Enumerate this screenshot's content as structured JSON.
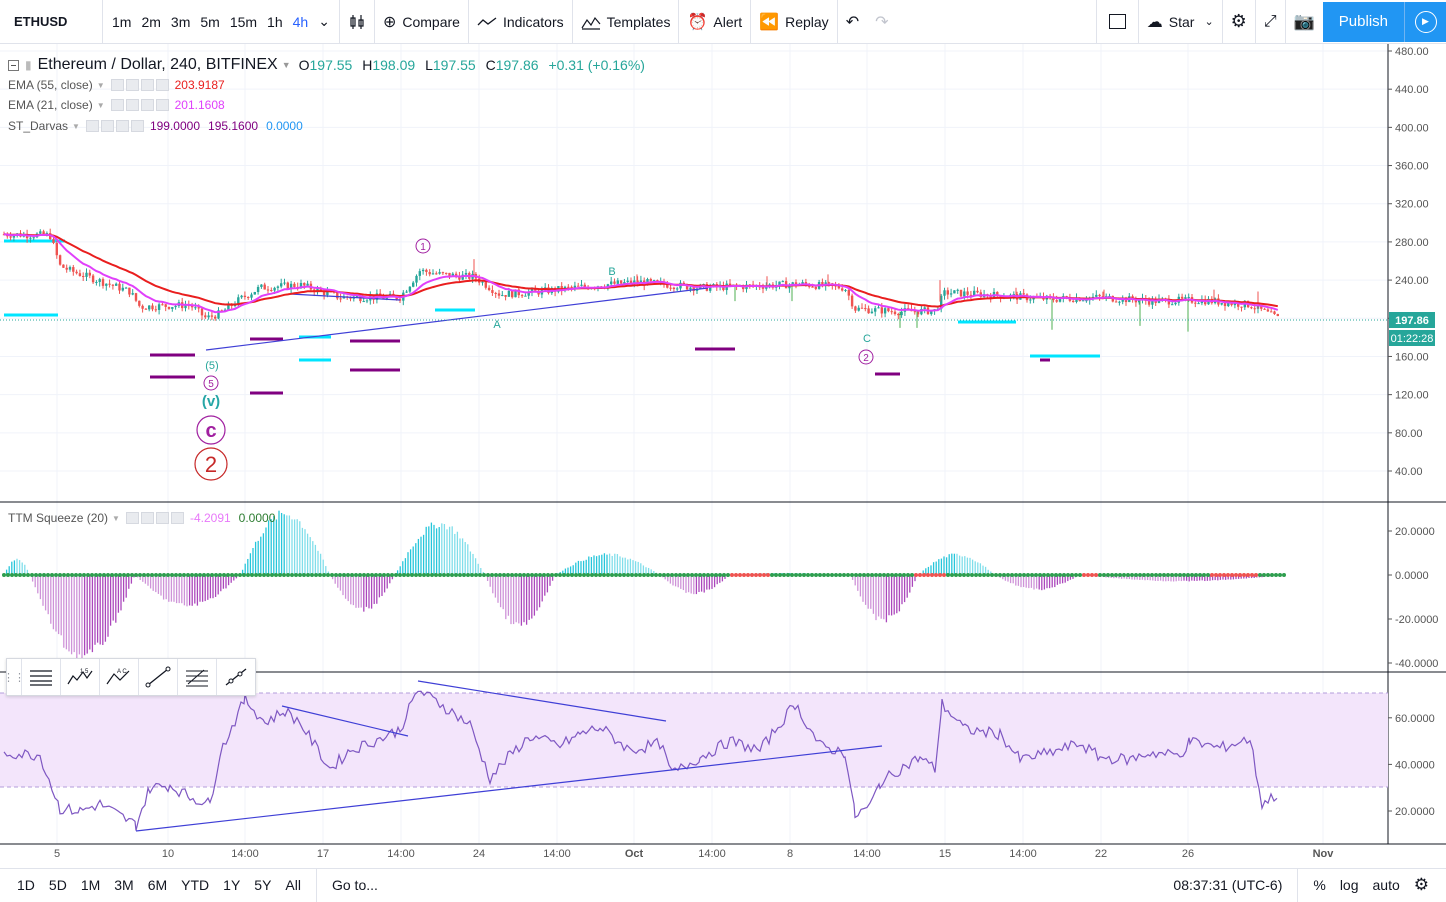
{
  "topbar": {
    "symbol": "ETHUSD",
    "intervals": [
      "1m",
      "2m",
      "3m",
      "5m",
      "15m",
      "1h",
      "4h"
    ],
    "active_interval": "4h",
    "compare_label": "Compare",
    "indicators_label": "Indicators",
    "templates_label": "Templates",
    "alert_label": "Alert",
    "replay_label": "Replay",
    "star_label": "Star",
    "publish_label": "Publish"
  },
  "main": {
    "title": "Ethereum / Dollar, 240, BITFINEX",
    "ohlc": {
      "o_label": "O",
      "o": "197.55",
      "h_label": "H",
      "h": "198.09",
      "l_label": "L",
      "l": "197.55",
      "c_label": "C",
      "c": "197.86",
      "change": "+0.31 (+0.16%)"
    },
    "indicators": [
      {
        "name": "EMA (55, close)",
        "values": [
          "203.9187"
        ],
        "color": "#e91e1e"
      },
      {
        "name": "EMA (21, close)",
        "values": [
          "201.1608"
        ],
        "color": "#e040fb"
      },
      {
        "name": "ST_Darvas",
        "values": [
          "199.0000",
          "195.1600",
          "0.0000"
        ],
        "colors": [
          "#800080",
          "#800080",
          "#2196f3"
        ]
      }
    ],
    "price_axis": [
      "480.00",
      "440.00",
      "400.00",
      "360.00",
      "320.00",
      "280.00",
      "240.00",
      "200.00",
      "160.00",
      "120.00",
      "80.00",
      "40.00"
    ],
    "last_price": "197.86",
    "countdown": "01:22:28",
    "wave_labels": {
      "w1": "1",
      "b": "B",
      "a": "A",
      "c_small": "C",
      "w2_small": "2",
      "w5_paren": "(5)",
      "w5": "5",
      "wv": "(v)",
      "wc": "c",
      "w2": "2"
    }
  },
  "squeeze": {
    "name": "TTM Squeeze (20)",
    "values": [
      "-4.2091",
      "0.0000"
    ],
    "axis": [
      "20.0000",
      "0.0000",
      "-20.0000",
      "-40.0000"
    ]
  },
  "rsi": {
    "axis": [
      "60.0000",
      "40.0000",
      "20.0000"
    ]
  },
  "time_axis": [
    "5",
    "10",
    "14:00",
    "17",
    "14:00",
    "24",
    "14:00",
    "Oct",
    "14:00",
    "8",
    "14:00",
    "15",
    "14:00",
    "22",
    "26",
    "Nov"
  ],
  "bottombar": {
    "ranges": [
      "1D",
      "5D",
      "1M",
      "3M",
      "6M",
      "YTD",
      "1Y",
      "5Y",
      "All"
    ],
    "goto_label": "Go to...",
    "clock": "08:37:31 (UTC-6)",
    "percent_label": "%",
    "log_label": "log",
    "auto_label": "auto"
  },
  "colors": {
    "accent": "#2196f3",
    "up": "#26a69a",
    "down": "#ef5350",
    "ema55": "#e91e1e",
    "ema21": "#e040fb",
    "darvas": "#800080",
    "cyan": "#00e5ff",
    "rsi": "#7e57c2"
  }
}
